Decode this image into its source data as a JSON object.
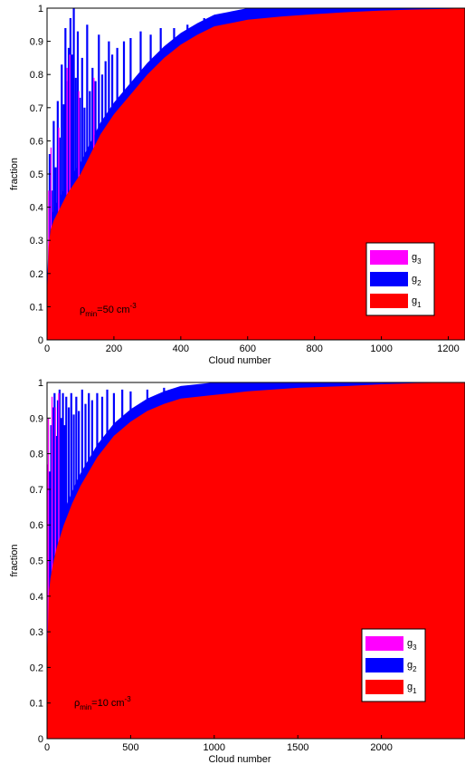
{
  "chart_data": [
    {
      "type": "area",
      "xlabel": "Cloud number",
      "ylabel": "fraction",
      "annotation": {
        "base": "ρ",
        "sub": "min",
        "mid": "=50 cm",
        "sup": "-3"
      },
      "xlim": [
        0,
        1250
      ],
      "ylim": [
        0,
        1
      ],
      "xticks": [
        0,
        200,
        400,
        600,
        800,
        1000,
        1200
      ],
      "yticks": [
        0,
        0.1,
        0.2,
        0.3,
        0.4,
        0.5,
        0.6,
        0.7,
        0.8,
        0.9,
        1
      ],
      "legend_position": "lower-right",
      "series": [
        {
          "name": "g3",
          "label_base": "g",
          "label_sub": "3",
          "color": "#ff00ff"
        },
        {
          "name": "g2",
          "label_base": "g",
          "label_sub": "2",
          "color": "#0000ff"
        },
        {
          "name": "g1",
          "label_base": "g",
          "label_sub": "1",
          "color": "#ff0000"
        }
      ],
      "g1_curve": {
        "x": [
          0,
          5,
          10,
          20,
          40,
          60,
          80,
          100,
          130,
          160,
          200,
          250,
          300,
          350,
          400,
          450,
          500,
          600,
          700,
          800,
          900,
          1000,
          1100,
          1200,
          1250
        ],
        "y": [
          0.12,
          0.28,
          0.33,
          0.36,
          0.4,
          0.44,
          0.47,
          0.5,
          0.56,
          0.62,
          0.68,
          0.74,
          0.8,
          0.85,
          0.89,
          0.92,
          0.945,
          0.965,
          0.975,
          0.982,
          0.988,
          0.993,
          0.996,
          0.998,
          1.0
        ]
      },
      "g2_spikes": [
        [
          8,
          0.56
        ],
        [
          14,
          0.45
        ],
        [
          20,
          0.66
        ],
        [
          26,
          0.52
        ],
        [
          32,
          0.72
        ],
        [
          38,
          0.61
        ],
        [
          44,
          0.83
        ],
        [
          50,
          0.71
        ],
        [
          55,
          0.94
        ],
        [
          60,
          0.78
        ],
        [
          65,
          0.88
        ],
        [
          70,
          0.97
        ],
        [
          75,
          0.86
        ],
        [
          80,
          1.0
        ],
        [
          86,
          0.79
        ],
        [
          92,
          0.93
        ],
        [
          98,
          0.73
        ],
        [
          105,
          0.85
        ],
        [
          112,
          0.7
        ],
        [
          120,
          0.95
        ],
        [
          128,
          0.75
        ],
        [
          136,
          0.82
        ],
        [
          145,
          0.78
        ],
        [
          155,
          0.92
        ],
        [
          165,
          0.8
        ],
        [
          175,
          0.84
        ],
        [
          185,
          0.9
        ],
        [
          195,
          0.86
        ],
        [
          210,
          0.88
        ],
        [
          230,
          0.9
        ],
        [
          250,
          0.91
        ],
        [
          280,
          0.93
        ],
        [
          310,
          0.92
        ],
        [
          340,
          0.94
        ],
        [
          380,
          0.94
        ],
        [
          420,
          0.95
        ],
        [
          470,
          0.97
        ],
        [
          520,
          0.96
        ]
      ],
      "g3_spikes": [
        [
          5,
          0.45
        ],
        [
          12,
          0.58
        ],
        [
          35,
          0.64
        ],
        [
          60,
          0.82
        ],
        [
          68,
          0.86
        ],
        [
          95,
          0.75
        ],
        [
          140,
          0.79
        ]
      ]
    },
    {
      "type": "area",
      "xlabel": "Cloud number",
      "ylabel": "fraction",
      "annotation": {
        "base": "ρ",
        "sub": "min",
        "mid": "=10 cm",
        "sup": "-3"
      },
      "xlim": [
        0,
        2500
      ],
      "ylim": [
        0,
        1
      ],
      "xticks": [
        0,
        500,
        1000,
        1500,
        2000
      ],
      "yticks": [
        0,
        0.1,
        0.2,
        0.3,
        0.4,
        0.5,
        0.6,
        0.7,
        0.8,
        0.9,
        1
      ],
      "legend_position": "lower-right",
      "series": [
        {
          "name": "g3",
          "label_base": "g",
          "label_sub": "3",
          "color": "#ff00ff"
        },
        {
          "name": "g2",
          "label_base": "g",
          "label_sub": "2",
          "color": "#0000ff"
        },
        {
          "name": "g1",
          "label_base": "g",
          "label_sub": "1",
          "color": "#ff0000"
        }
      ],
      "g1_curve": {
        "x": [
          0,
          10,
          20,
          40,
          60,
          100,
          150,
          200,
          250,
          300,
          400,
          500,
          600,
          700,
          800,
          1000,
          1200,
          1500,
          1800,
          2000,
          2200,
          2500
        ],
        "y": [
          0.2,
          0.4,
          0.45,
          0.5,
          0.54,
          0.6,
          0.66,
          0.71,
          0.75,
          0.79,
          0.85,
          0.89,
          0.92,
          0.94,
          0.955,
          0.965,
          0.975,
          0.985,
          0.99,
          0.995,
          0.998,
          1.0
        ]
      },
      "g2_spikes": [
        [
          15,
          0.75
        ],
        [
          25,
          0.88
        ],
        [
          35,
          0.93
        ],
        [
          45,
          0.97
        ],
        [
          55,
          0.85
        ],
        [
          65,
          0.95
        ],
        [
          75,
          0.98
        ],
        [
          85,
          0.9
        ],
        [
          95,
          0.97
        ],
        [
          105,
          0.88
        ],
        [
          115,
          0.96
        ],
        [
          130,
          0.93
        ],
        [
          145,
          0.97
        ],
        [
          160,
          0.91
        ],
        [
          175,
          0.96
        ],
        [
          190,
          0.92
        ],
        [
          210,
          0.98
        ],
        [
          230,
          0.94
        ],
        [
          250,
          0.97
        ],
        [
          270,
          0.95
        ],
        [
          300,
          0.97
        ],
        [
          330,
          0.96
        ],
        [
          360,
          0.98
        ],
        [
          400,
          0.97
        ],
        [
          450,
          0.98
        ],
        [
          500,
          0.975
        ],
        [
          600,
          0.98
        ],
        [
          700,
          0.985
        ],
        [
          800,
          0.985
        ],
        [
          900,
          0.99
        ]
      ],
      "g3_spikes": [
        [
          5,
          0.77
        ],
        [
          8,
          0.9
        ],
        [
          30,
          0.96
        ],
        [
          50,
          0.93
        ],
        [
          70,
          0.97
        ]
      ]
    }
  ]
}
